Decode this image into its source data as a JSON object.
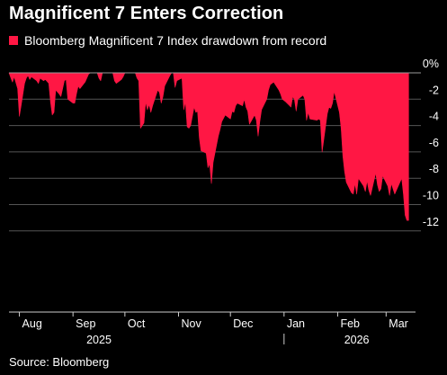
{
  "title": "Magnificent 7 Enters Correction",
  "source": "Source: Bloomberg",
  "colors": {
    "background": "#000000",
    "area": "#ff1744",
    "grid": "#555555",
    "text": "#ffffff"
  },
  "chart_data": {
    "type": "area",
    "legend": [
      {
        "label": "Bloomberg Magnificent 7 Index drawdown from record",
        "color": "#ff1744"
      }
    ],
    "y_axis": {
      "position": "right",
      "ticks": [
        {
          "value": 0,
          "label": "0%"
        },
        {
          "value": -2,
          "label": "-2"
        },
        {
          "value": -4,
          "label": "-4"
        },
        {
          "value": -6,
          "label": "-6"
        },
        {
          "value": -8,
          "label": "-8"
        },
        {
          "value": -10,
          "label": "-10"
        },
        {
          "value": -12,
          "label": "-12"
        }
      ],
      "ylim": [
        -12.5,
        0
      ]
    },
    "x_axis": {
      "xlim": [
        "2025-07-26",
        "2026-03-18"
      ],
      "months": [
        {
          "date": "2025-08-01",
          "label": "Aug"
        },
        {
          "date": "2025-09-01",
          "label": "Sep"
        },
        {
          "date": "2025-10-01",
          "label": "Oct"
        },
        {
          "date": "2025-11-01",
          "label": "Nov"
        },
        {
          "date": "2025-12-01",
          "label": "Dec"
        },
        {
          "date": "2026-01-01",
          "label": "Jan"
        },
        {
          "date": "2026-02-01",
          "label": "Feb"
        },
        {
          "date": "2026-03-01",
          "label": "Mar"
        }
      ],
      "years": [
        {
          "date": "2025-09-16",
          "label": "2025"
        },
        {
          "date": "2026-02-12",
          "label": "2026"
        }
      ],
      "year_divider": "2026-01-01"
    },
    "grid": true,
    "series": [
      {
        "name": "Bloomberg Magnificent 7 Index drawdown from record",
        "points": [
          [
            "2025-07-26",
            0
          ],
          [
            "2025-07-28",
            -0.7
          ],
          [
            "2025-07-29",
            -0.3
          ],
          [
            "2025-07-31",
            -1.2
          ],
          [
            "2025-08-01",
            -3.3
          ],
          [
            "2025-08-02",
            -2.5
          ],
          [
            "2025-08-04",
            -0.8
          ],
          [
            "2025-08-05",
            -0.4
          ],
          [
            "2025-08-06",
            -0.2
          ],
          [
            "2025-08-07",
            -0.5
          ],
          [
            "2025-08-08",
            -0.3
          ],
          [
            "2025-08-11",
            -0.6
          ],
          [
            "2025-08-12",
            -0.8
          ],
          [
            "2025-08-13",
            -0.4
          ],
          [
            "2025-08-14",
            -0.5
          ],
          [
            "2025-08-15",
            -0.6
          ],
          [
            "2025-08-16",
            -0.5
          ],
          [
            "2025-08-18",
            -0.8
          ],
          [
            "2025-08-19",
            -2.2
          ],
          [
            "2025-08-20",
            -3.2
          ],
          [
            "2025-08-21",
            -3.0
          ],
          [
            "2025-08-22",
            -1.3
          ],
          [
            "2025-08-24",
            -1.6
          ],
          [
            "2025-08-25",
            -1.8
          ],
          [
            "2025-08-26",
            -1.2
          ],
          [
            "2025-08-27",
            -0.6
          ],
          [
            "2025-08-28",
            -0.5
          ],
          [
            "2025-08-29",
            -2.0
          ],
          [
            "2025-09-01",
            -2.3
          ],
          [
            "2025-09-02",
            -2.3
          ],
          [
            "2025-09-03",
            -1.6
          ],
          [
            "2025-09-04",
            -1.0
          ],
          [
            "2025-09-05",
            -1.2
          ],
          [
            "2025-09-08",
            -0.7
          ],
          [
            "2025-09-09",
            -0.4
          ],
          [
            "2025-09-10",
            -0.1
          ],
          [
            "2025-09-11",
            0
          ],
          [
            "2025-09-15",
            0
          ],
          [
            "2025-09-16",
            -0.4
          ],
          [
            "2025-09-17",
            -0.6
          ],
          [
            "2025-09-18",
            0
          ],
          [
            "2025-09-24",
            0
          ],
          [
            "2025-09-25",
            -0.6
          ],
          [
            "2025-09-26",
            -0.8
          ],
          [
            "2025-09-29",
            -0.5
          ],
          [
            "2025-09-30",
            -0.3
          ],
          [
            "2025-10-01",
            0
          ],
          [
            "2025-10-07",
            0
          ],
          [
            "2025-10-08",
            -0.4
          ],
          [
            "2025-10-09",
            -0.6
          ],
          [
            "2025-10-10",
            -4.2
          ],
          [
            "2025-10-12",
            -3.8
          ],
          [
            "2025-10-13",
            -2.2
          ],
          [
            "2025-10-14",
            -2.8
          ],
          [
            "2025-10-15",
            -2.4
          ],
          [
            "2025-10-16",
            -3.0
          ],
          [
            "2025-10-17",
            -2.5
          ],
          [
            "2025-10-20",
            -1.3
          ],
          [
            "2025-10-21",
            -1.5
          ],
          [
            "2025-10-22",
            -2.3
          ],
          [
            "2025-10-23",
            -1.8
          ],
          [
            "2025-10-24",
            -1.0
          ],
          [
            "2025-10-27",
            -0.2
          ],
          [
            "2025-10-28",
            0
          ],
          [
            "2025-10-29",
            0
          ],
          [
            "2025-10-30",
            -1.1
          ],
          [
            "2025-10-31",
            -0.6
          ],
          [
            "2025-11-03",
            -0.4
          ],
          [
            "2025-11-04",
            -2.8
          ],
          [
            "2025-11-05",
            -2.2
          ],
          [
            "2025-11-06",
            -4.1
          ],
          [
            "2025-11-07",
            -4.2
          ],
          [
            "2025-11-08",
            -4.0
          ],
          [
            "2025-11-10",
            -2.6
          ],
          [
            "2025-11-11",
            -3.0
          ],
          [
            "2025-11-12",
            -2.9
          ],
          [
            "2025-11-13",
            -4.9
          ],
          [
            "2025-11-14",
            -5.9
          ],
          [
            "2025-11-17",
            -6.1
          ],
          [
            "2025-11-18",
            -7.2
          ],
          [
            "2025-11-19",
            -6.9
          ],
          [
            "2025-11-20",
            -8.4
          ],
          [
            "2025-11-21",
            -6.8
          ],
          [
            "2025-11-24",
            -4.8
          ],
          [
            "2025-11-25",
            -4.3
          ],
          [
            "2025-11-26",
            -3.7
          ],
          [
            "2025-11-28",
            -3.2
          ],
          [
            "2025-12-01",
            -3.5
          ],
          [
            "2025-12-02",
            -2.9
          ],
          [
            "2025-12-03",
            -3.0
          ],
          [
            "2025-12-04",
            -2.5
          ],
          [
            "2025-12-05",
            -2.3
          ],
          [
            "2025-12-08",
            -2.5
          ],
          [
            "2025-12-09",
            -2.0
          ],
          [
            "2025-12-10",
            -2.6
          ],
          [
            "2025-12-11",
            -2.9
          ],
          [
            "2025-12-12",
            -3.9
          ],
          [
            "2025-12-15",
            -3.2
          ],
          [
            "2025-12-16",
            -3.6
          ],
          [
            "2025-12-17",
            -4.8
          ],
          [
            "2025-12-18",
            -3.7
          ],
          [
            "2025-12-19",
            -2.8
          ],
          [
            "2025-12-22",
            -2.0
          ],
          [
            "2025-12-23",
            -1.3
          ],
          [
            "2025-12-24",
            -0.9
          ],
          [
            "2025-12-26",
            -0.7
          ],
          [
            "2025-12-29",
            -1.3
          ],
          [
            "2025-12-30",
            -1.6
          ],
          [
            "2025-12-31",
            -2.0
          ],
          [
            "2026-01-02",
            -2.2
          ],
          [
            "2026-01-05",
            -2.6
          ],
          [
            "2026-01-06",
            -1.8
          ],
          [
            "2026-01-07",
            -2.0
          ],
          [
            "2026-01-08",
            -2.9
          ],
          [
            "2026-01-09",
            -2.0
          ],
          [
            "2026-01-12",
            -1.7
          ],
          [
            "2026-01-13",
            -2.0
          ],
          [
            "2026-01-14",
            -3.6
          ],
          [
            "2026-01-15",
            -3.0
          ],
          [
            "2026-01-16",
            -3.5
          ],
          [
            "2026-01-20",
            -3.6
          ],
          [
            "2026-01-21",
            -3.5
          ],
          [
            "2026-01-22",
            -3.6
          ],
          [
            "2026-01-23",
            -6.0
          ],
          [
            "2026-01-26",
            -3.1
          ],
          [
            "2026-01-27",
            -2.6
          ],
          [
            "2026-01-28",
            -2.7
          ],
          [
            "2026-01-29",
            -2.3
          ],
          [
            "2026-01-30",
            -1.4
          ],
          [
            "2026-02-02",
            -3.0
          ],
          [
            "2026-02-03",
            -4.2
          ],
          [
            "2026-02-04",
            -6.3
          ],
          [
            "2026-02-05",
            -7.5
          ],
          [
            "2026-02-06",
            -8.3
          ],
          [
            "2026-02-09",
            -9.1
          ],
          [
            "2026-02-10",
            -9.2
          ],
          [
            "2026-02-11",
            -8.4
          ],
          [
            "2026-02-12",
            -9.2
          ],
          [
            "2026-02-13",
            -8.0
          ],
          [
            "2026-02-16",
            -8.6
          ],
          [
            "2026-02-17",
            -9.0
          ],
          [
            "2026-02-18",
            -8.2
          ],
          [
            "2026-02-19",
            -8.9
          ],
          [
            "2026-02-20",
            -9.3
          ],
          [
            "2026-02-23",
            -7.6
          ],
          [
            "2026-02-24",
            -8.5
          ],
          [
            "2026-02-25",
            -9.0
          ],
          [
            "2026-02-26",
            -8.8
          ],
          [
            "2026-02-27",
            -7.8
          ],
          [
            "2026-03-02",
            -8.6
          ],
          [
            "2026-03-03",
            -9.3
          ],
          [
            "2026-03-04",
            -8.4
          ],
          [
            "2026-03-05",
            -8.8
          ],
          [
            "2026-03-06",
            -9.2
          ],
          [
            "2026-03-09",
            -8.3
          ],
          [
            "2026-03-10",
            -8.0
          ],
          [
            "2026-03-11",
            -9.2
          ],
          [
            "2026-03-12",
            -10.8
          ],
          [
            "2026-03-13",
            -11.2
          ],
          [
            "2026-03-14",
            -11.2
          ]
        ]
      }
    ]
  }
}
